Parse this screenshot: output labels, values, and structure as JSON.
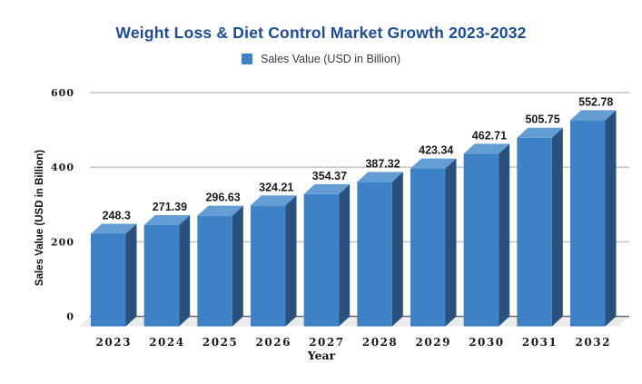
{
  "chart": {
    "title": "Weight Loss & Diet Control Market Growth 2023-2032",
    "legend_label": "Sales Value (USD in Billion)",
    "y_axis_title": "Sales Value (USD in Billion)",
    "x_axis_title": "Year"
  },
  "chart_data": {
    "type": "bar",
    "style": "3d",
    "title": "Weight Loss & Diet Control Market Growth 2023-2032",
    "xlabel": "Year",
    "ylabel": "Sales Value (USD in Billion)",
    "legend_entries": [
      "Sales Value (USD in Billion)"
    ],
    "legend_position": "top",
    "categories": [
      "2023",
      "2024",
      "2025",
      "2026",
      "2027",
      "2028",
      "2029",
      "2030",
      "2031",
      "2032"
    ],
    "values": [
      248.3,
      271.39,
      296.63,
      324.21,
      354.37,
      387.32,
      423.34,
      462.71,
      505.75,
      552.78
    ],
    "ylim": [
      0,
      600
    ],
    "yticks": [
      0,
      200,
      400,
      600
    ],
    "grid": true,
    "colors": {
      "bar_front": "#3d82c6",
      "bar_top": "#639dd4",
      "bar_side": "#29517c",
      "title_text": "#1b4c94",
      "gridline": "#c3c3c3",
      "baseline": "#6a6a6a",
      "floor": "#ebebeb",
      "label_text": "#1a1a1a"
    }
  }
}
